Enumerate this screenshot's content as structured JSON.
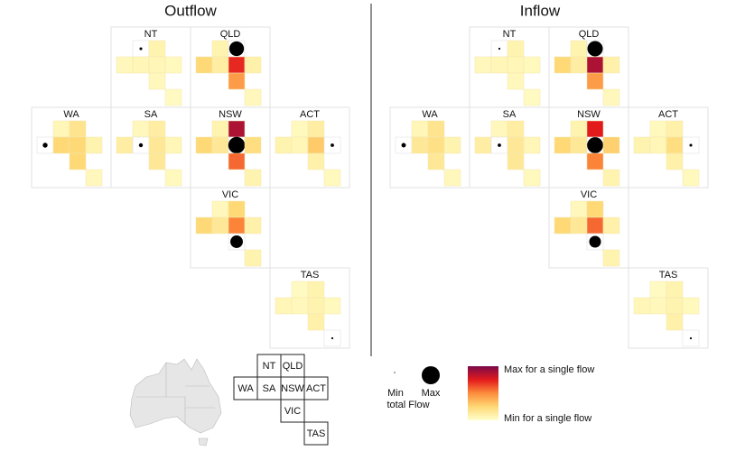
{
  "chart_data": {
    "type": "flow-grid-map",
    "color_scale": [
      "#ffffcc",
      "#fed976",
      "#fd8d3c",
      "#e31a1c",
      "#7a0a4a"
    ],
    "panels": [
      {
        "title": "Outflow",
        "states": [
          {
            "name": "NT",
            "total": 2,
            "flows": [
              null,
              8,
              5,
              6,
              6,
              4,
              5,
              3
            ]
          },
          {
            "name": "QLD",
            "total": 55,
            "flows": [
              8,
              null,
              25,
              12,
              72,
              10,
              45,
              5
            ]
          },
          {
            "name": "WA",
            "total": 6,
            "flows": [
              6,
              18,
              null,
              25,
              25,
              8,
              25,
              5
            ]
          },
          {
            "name": "SA",
            "total": 4,
            "flows": [
              5,
              12,
              12,
              null,
              15,
              6,
              15,
              4
            ]
          },
          {
            "name": "NSW",
            "total": 70,
            "flows": [
              8,
              88,
              25,
              15,
              null,
              22,
              58,
              8
            ]
          },
          {
            "name": "ACT",
            "total": 3,
            "flows": [
              4,
              12,
              8,
              6,
              30,
              null,
              10,
              4
            ]
          },
          {
            "name": "VIC",
            "total": 40,
            "flows": [
              5,
              25,
              25,
              15,
              52,
              10,
              null,
              8
            ]
          },
          {
            "name": "TAS",
            "total": 1,
            "flows": [
              3,
              8,
              6,
              5,
              8,
              4,
              10,
              null
            ]
          }
        ]
      },
      {
        "title": "Inflow",
        "states": [
          {
            "name": "NT",
            "total": 1,
            "flows": [
              null,
              8,
              5,
              6,
              6,
              4,
              5,
              3
            ]
          },
          {
            "name": "QLD",
            "total": 60,
            "flows": [
              8,
              null,
              25,
              12,
              88,
              10,
              45,
              5
            ]
          },
          {
            "name": "WA",
            "total": 5,
            "flows": [
              6,
              18,
              null,
              15,
              20,
              8,
              15,
              5
            ]
          },
          {
            "name": "SA",
            "total": 3,
            "flows": [
              5,
              12,
              12,
              null,
              15,
              6,
              15,
              4
            ]
          },
          {
            "name": "NSW",
            "total": 65,
            "flows": [
              8,
              75,
              25,
              15,
              null,
              28,
              52,
              8
            ]
          },
          {
            "name": "ACT",
            "total": 2,
            "flows": [
              4,
              10,
              8,
              6,
              22,
              null,
              10,
              4
            ]
          },
          {
            "name": "VIC",
            "total": 35,
            "flows": [
              5,
              25,
              25,
              15,
              58,
              10,
              null,
              8
            ]
          },
          {
            "name": "TAS",
            "total": 1,
            "flows": [
              3,
              8,
              6,
              5,
              8,
              4,
              10,
              null
            ]
          }
        ]
      }
    ],
    "legend": {
      "grid_labels": [
        "NT",
        "QLD",
        "WA",
        "SA",
        "NSW",
        "ACT",
        "VIC",
        "TAS"
      ],
      "size_min": {
        "label": "Min",
        "value": 1
      },
      "size_max": {
        "label": "Max",
        "value": 100
      },
      "size_title": "total Flow",
      "color_max": "Max for a single flow",
      "color_min": "Min for a single flow"
    }
  }
}
